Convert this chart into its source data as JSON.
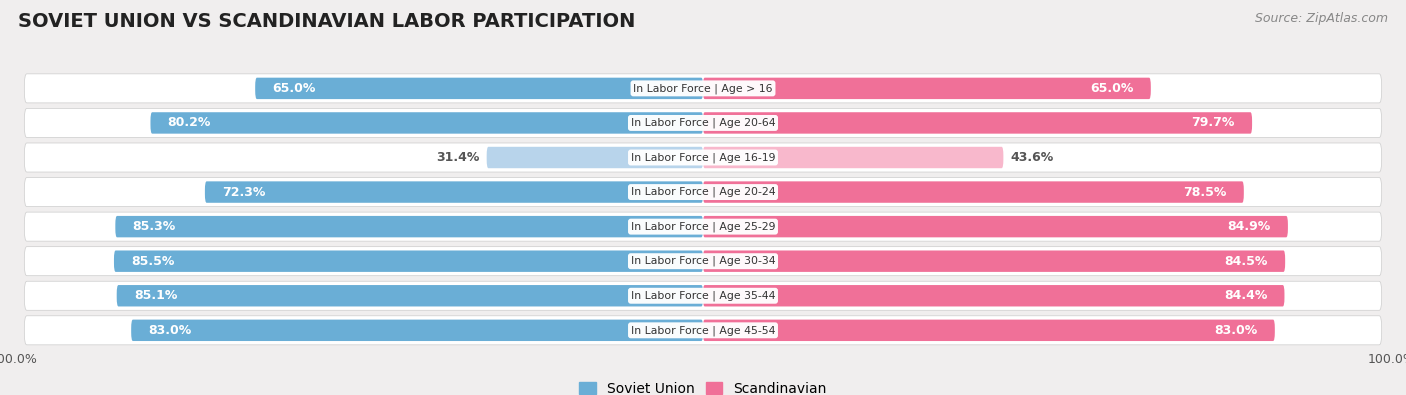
{
  "title": "SOVIET UNION VS SCANDINAVIAN LABOR PARTICIPATION",
  "source": "Source: ZipAtlas.com",
  "categories": [
    "In Labor Force | Age > 16",
    "In Labor Force | Age 20-64",
    "In Labor Force | Age 16-19",
    "In Labor Force | Age 20-24",
    "In Labor Force | Age 25-29",
    "In Labor Force | Age 30-34",
    "In Labor Force | Age 35-44",
    "In Labor Force | Age 45-54"
  ],
  "soviet_values": [
    65.0,
    80.2,
    31.4,
    72.3,
    85.3,
    85.5,
    85.1,
    83.0
  ],
  "scandinavian_values": [
    65.0,
    79.7,
    43.6,
    78.5,
    84.9,
    84.5,
    84.4,
    83.0
  ],
  "soviet_color": "#6aaed6",
  "soviet_color_light": "#b8d4eb",
  "scandinavian_color": "#f07098",
  "scandinavian_color_light": "#f8b8cc",
  "bg_color": "#f0eeee",
  "row_bg": "#ffffff",
  "title_fontsize": 14,
  "source_fontsize": 9,
  "bar_label_fontsize": 9,
  "cat_label_fontsize": 8,
  "legend_fontsize": 10,
  "axis_label_fontsize": 9
}
